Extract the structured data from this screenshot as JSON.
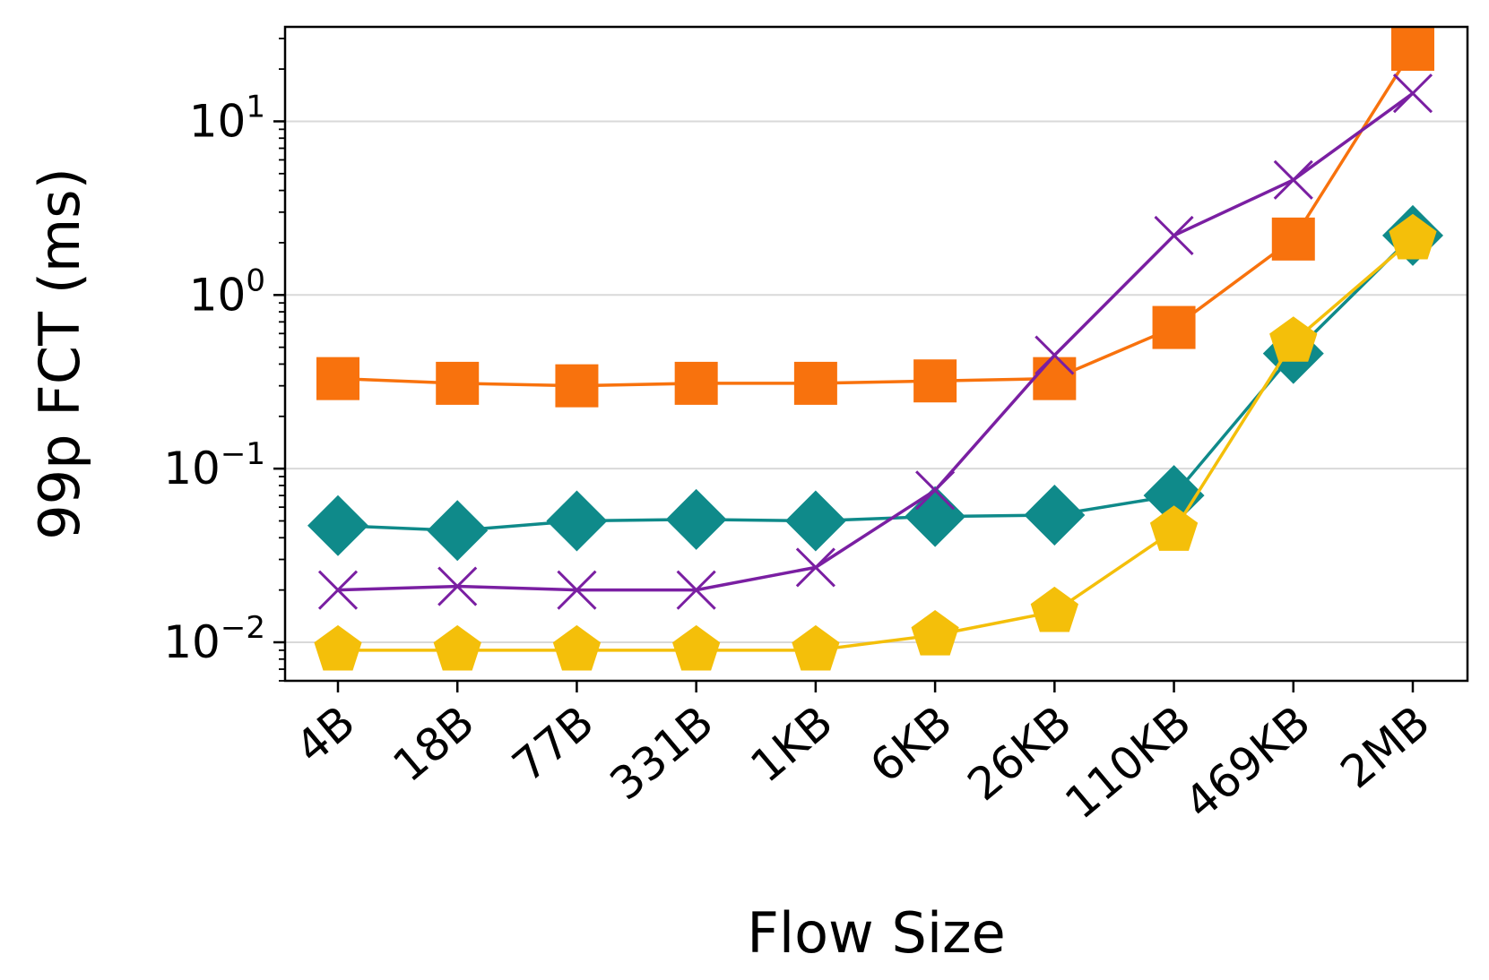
{
  "chart_data": {
    "type": "line",
    "title": "",
    "xlabel": "Flow Size",
    "ylabel": "99p FCT (ms)",
    "yscale": "log",
    "ylim": [
      0.006,
      35
    ],
    "grid": "horizontal-major",
    "categories": [
      "4B",
      "18B",
      "77B",
      "331B",
      "1KB",
      "6KB",
      "26KB",
      "110KB",
      "469KB",
      "2MB"
    ],
    "y_ticks": [
      {
        "base": "10",
        "exp": "−2",
        "value": 0.01
      },
      {
        "base": "10",
        "exp": "−1",
        "value": 0.1
      },
      {
        "base": "10",
        "exp": "0",
        "value": 1
      },
      {
        "base": "10",
        "exp": "1",
        "value": 10
      }
    ],
    "series": [
      {
        "color": "#f8720d",
        "marker": "square",
        "values": [
          0.33,
          0.31,
          0.3,
          0.31,
          0.31,
          0.32,
          0.33,
          0.65,
          2.1,
          26
        ]
      },
      {
        "color": "#0f8a8a",
        "marker": "diamond",
        "values": [
          0.047,
          0.044,
          0.05,
          0.051,
          0.05,
          0.053,
          0.054,
          0.07,
          0.46,
          2.2
        ]
      },
      {
        "color": "#7a1fa2",
        "marker": "x",
        "values": [
          0.02,
          0.021,
          0.02,
          0.02,
          0.027,
          0.075,
          0.45,
          2.2,
          4.6,
          14.5
        ]
      },
      {
        "color": "#f4bf0a",
        "marker": "pentagon",
        "values": [
          0.009,
          0.009,
          0.009,
          0.009,
          0.009,
          0.011,
          0.015,
          0.044,
          0.54,
          2.1
        ]
      }
    ]
  }
}
